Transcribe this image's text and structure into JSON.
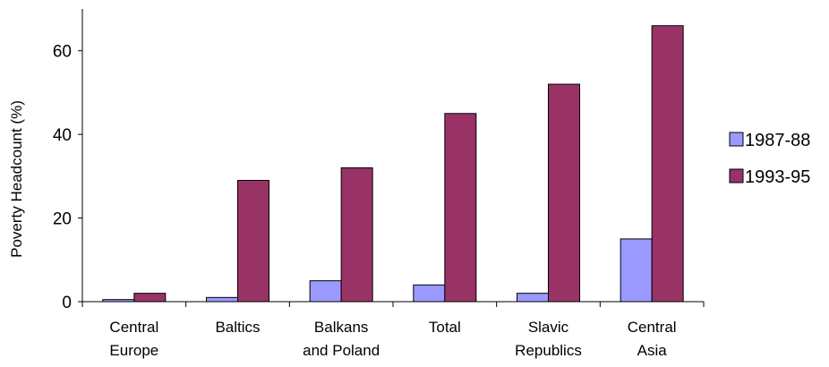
{
  "chart_data": {
    "type": "bar",
    "ylabel": "Poverty Headcount (%)",
    "ylim": [
      0,
      70
    ],
    "yticks": [
      0,
      20,
      40,
      60
    ],
    "grid": false,
    "legend_position": "right",
    "categories": [
      [
        "Central",
        "Europe"
      ],
      [
        "Baltics"
      ],
      [
        "Balkans",
        "and Poland"
      ],
      [
        "Total"
      ],
      [
        "Slavic",
        "Republics"
      ],
      [
        "Central",
        "Asia"
      ]
    ],
    "series": [
      {
        "name": "1987-88",
        "color": "#9999ff",
        "values": [
          0.5,
          1,
          5,
          4,
          2,
          15
        ]
      },
      {
        "name": "1993-95",
        "color": "#993366",
        "values": [
          2,
          29,
          32,
          45,
          52,
          66
        ]
      }
    ]
  }
}
